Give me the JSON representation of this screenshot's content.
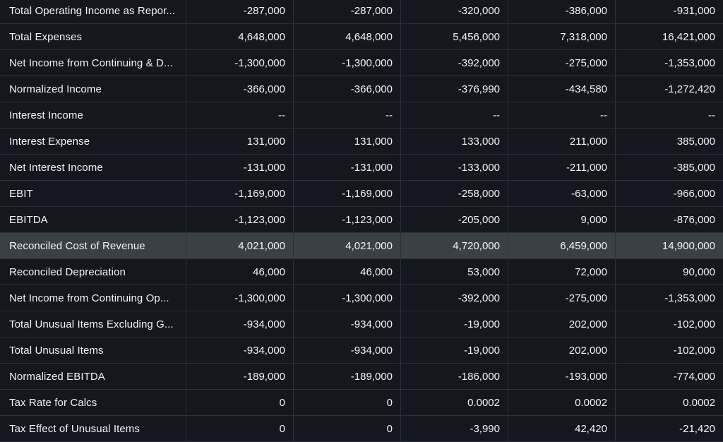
{
  "rows": [
    {
      "label": "Total Operating Income as Repor...",
      "values": [
        "-287,000",
        "-287,000",
        "-320,000",
        "-386,000",
        "-931,000"
      ]
    },
    {
      "label": "Total Expenses",
      "values": [
        "4,648,000",
        "4,648,000",
        "5,456,000",
        "7,318,000",
        "16,421,000"
      ]
    },
    {
      "label": "Net Income from Continuing & D...",
      "values": [
        "-1,300,000",
        "-1,300,000",
        "-392,000",
        "-275,000",
        "-1,353,000"
      ]
    },
    {
      "label": "Normalized Income",
      "values": [
        "-366,000",
        "-366,000",
        "-376,990",
        "-434,580",
        "-1,272,420"
      ]
    },
    {
      "label": "Interest Income",
      "values": [
        "--",
        "--",
        "--",
        "--",
        "--"
      ]
    },
    {
      "label": "Interest Expense",
      "values": [
        "131,000",
        "131,000",
        "133,000",
        "211,000",
        "385,000"
      ]
    },
    {
      "label": "Net Interest Income",
      "values": [
        "-131,000",
        "-131,000",
        "-133,000",
        "-211,000",
        "-385,000"
      ]
    },
    {
      "label": "EBIT",
      "values": [
        "-1,169,000",
        "-1,169,000",
        "-258,000",
        "-63,000",
        "-966,000"
      ]
    },
    {
      "label": "EBITDA",
      "values": [
        "-1,123,000",
        "-1,123,000",
        "-205,000",
        "9,000",
        "-876,000"
      ]
    },
    {
      "label": "Reconciled Cost of Revenue",
      "values": [
        "4,021,000",
        "4,021,000",
        "4,720,000",
        "6,459,000",
        "14,900,000"
      ],
      "highlighted": true
    },
    {
      "label": "Reconciled Depreciation",
      "values": [
        "46,000",
        "46,000",
        "53,000",
        "72,000",
        "90,000"
      ]
    },
    {
      "label": "Net Income from Continuing Op...",
      "values": [
        "-1,300,000",
        "-1,300,000",
        "-392,000",
        "-275,000",
        "-1,353,000"
      ]
    },
    {
      "label": "Total Unusual Items Excluding G...",
      "values": [
        "-934,000",
        "-934,000",
        "-19,000",
        "202,000",
        "-102,000"
      ]
    },
    {
      "label": "Total Unusual Items",
      "values": [
        "-934,000",
        "-934,000",
        "-19,000",
        "202,000",
        "-102,000"
      ]
    },
    {
      "label": "Normalized EBITDA",
      "values": [
        "-189,000",
        "-189,000",
        "-186,000",
        "-193,000",
        "-774,000"
      ]
    },
    {
      "label": "Tax Rate for Calcs",
      "values": [
        "0",
        "0",
        "0.0002",
        "0.0002",
        "0.0002"
      ]
    },
    {
      "label": "Tax Effect of Unusual Items",
      "values": [
        "0",
        "0",
        "-3,990",
        "42,420",
        "-21,420"
      ]
    }
  ],
  "colors": {
    "background": "#14171d",
    "highlight_row": "#3a4145",
    "text": "#f2f3f5",
    "grid_line": "#2c3038"
  }
}
